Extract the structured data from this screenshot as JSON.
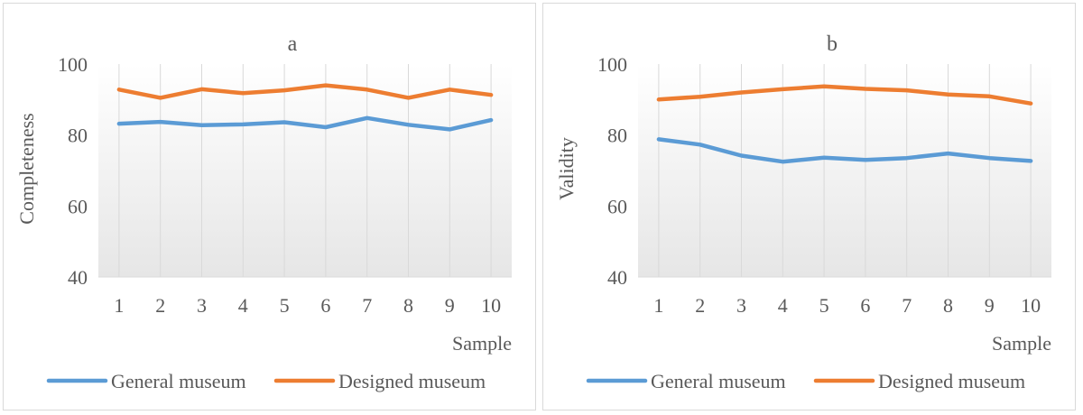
{
  "chart_data": [
    {
      "type": "line",
      "title": "a",
      "xlabel": "Sample",
      "ylabel": "Completeness",
      "categories": [
        "1",
        "2",
        "3",
        "4",
        "5",
        "6",
        "7",
        "8",
        "9",
        "10"
      ],
      "ylim": [
        40,
        100
      ],
      "yticks": [
        "40",
        "60",
        "80",
        "100"
      ],
      "grid": "vertical",
      "legend": "bottom",
      "series": [
        {
          "name": "General museum",
          "color": "#5b9bd5",
          "values": [
            83.2,
            83.7,
            82.8,
            83.0,
            83.6,
            82.2,
            84.8,
            82.9,
            81.6,
            84.2
          ]
        },
        {
          "name": "Designed museum",
          "color": "#ed7d31",
          "values": [
            92.8,
            90.5,
            92.9,
            91.8,
            92.6,
            94.0,
            92.8,
            90.5,
            92.8,
            91.3
          ]
        }
      ]
    },
    {
      "type": "line",
      "title": "b",
      "xlabel": "Sample",
      "ylabel": "Validity",
      "categories": [
        "1",
        "2",
        "3",
        "4",
        "5",
        "6",
        "7",
        "8",
        "9",
        "10"
      ],
      "ylim": [
        40,
        100
      ],
      "yticks": [
        "40",
        "60",
        "80",
        "100"
      ],
      "grid": "vertical",
      "legend": "bottom",
      "series": [
        {
          "name": "General museum",
          "color": "#5b9bd5",
          "values": [
            78.8,
            77.3,
            74.2,
            72.5,
            73.6,
            73.0,
            73.5,
            74.8,
            73.5,
            72.7
          ]
        },
        {
          "name": "Designed museum",
          "color": "#ed7d31",
          "values": [
            90.0,
            90.8,
            92.0,
            92.9,
            93.7,
            93.0,
            92.6,
            91.4,
            90.9,
            88.9
          ]
        }
      ]
    }
  ]
}
